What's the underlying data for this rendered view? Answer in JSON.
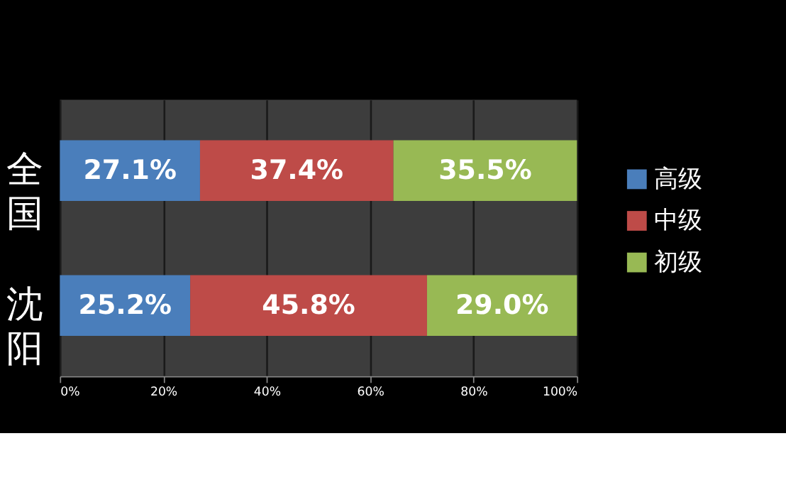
{
  "chart_data": {
    "type": "bar",
    "orientation": "horizontal",
    "stacked": true,
    "categories": [
      "全国",
      "沈阳"
    ],
    "series": [
      {
        "name": "高级",
        "color": "#4a7ebb",
        "values": [
          27.1,
          25.2
        ],
        "value_labels": [
          "27.1%",
          "25.2%"
        ]
      },
      {
        "name": "中级",
        "color": "#be4b48",
        "values": [
          37.4,
          45.8
        ],
        "value_labels": [
          "37.4%",
          "45.8%"
        ]
      },
      {
        "name": "初级",
        "color": "#98b954",
        "values": [
          35.5,
          29.0
        ],
        "value_labels": [
          "35.5%",
          "29.0%"
        ]
      }
    ],
    "xlim": [
      0,
      100
    ],
    "xticks": [
      {
        "value": 0,
        "label": "0%"
      },
      {
        "value": 20,
        "label": "20%"
      },
      {
        "value": 40,
        "label": "40%"
      },
      {
        "value": 60,
        "label": "60%"
      },
      {
        "value": 80,
        "label": "80%"
      },
      {
        "value": 100,
        "label": "100%"
      }
    ],
    "grid": "x",
    "legend": "right"
  }
}
